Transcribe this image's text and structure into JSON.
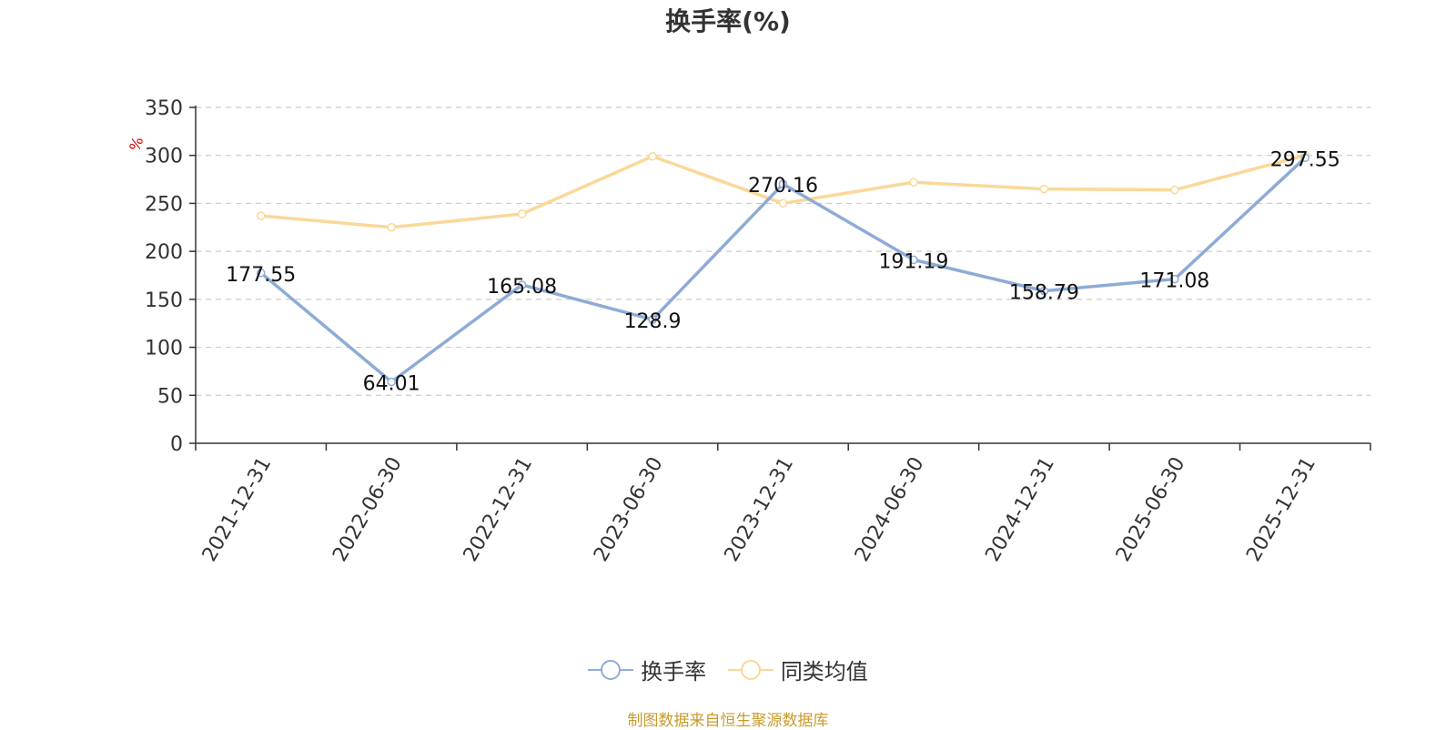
{
  "chart_data": {
    "type": "line",
    "title": "换手率(%)",
    "ylabel": "%",
    "xlabel": "",
    "ylim": [
      0,
      350
    ],
    "yticks": [
      0,
      50,
      100,
      150,
      200,
      250,
      300,
      350
    ],
    "grid": true,
    "legend_position": "bottom",
    "categories": [
      "2021-12-31",
      "2022-06-30",
      "2022-12-31",
      "2023-06-30",
      "2023-12-31",
      "2024-06-30",
      "2024-12-31",
      "2025-06-30",
      "2025-12-31"
    ],
    "series": [
      {
        "name": "换手率",
        "color": "#8eabd6",
        "values": [
          177.55,
          64.01,
          165.08,
          128.9,
          270.16,
          191.19,
          158.79,
          171.08,
          297.55
        ],
        "labels": [
          "177.55",
          "64.01",
          "165.08",
          "128.9",
          "270.16",
          "191.19",
          "158.79",
          "171.08",
          "297.55"
        ]
      },
      {
        "name": "同类均值",
        "color": "#fad898",
        "values": [
          237,
          225,
          239,
          299,
          250,
          272,
          265,
          264,
          300
        ]
      }
    ]
  },
  "source_text": "制图数据来自恒生聚源数据库"
}
